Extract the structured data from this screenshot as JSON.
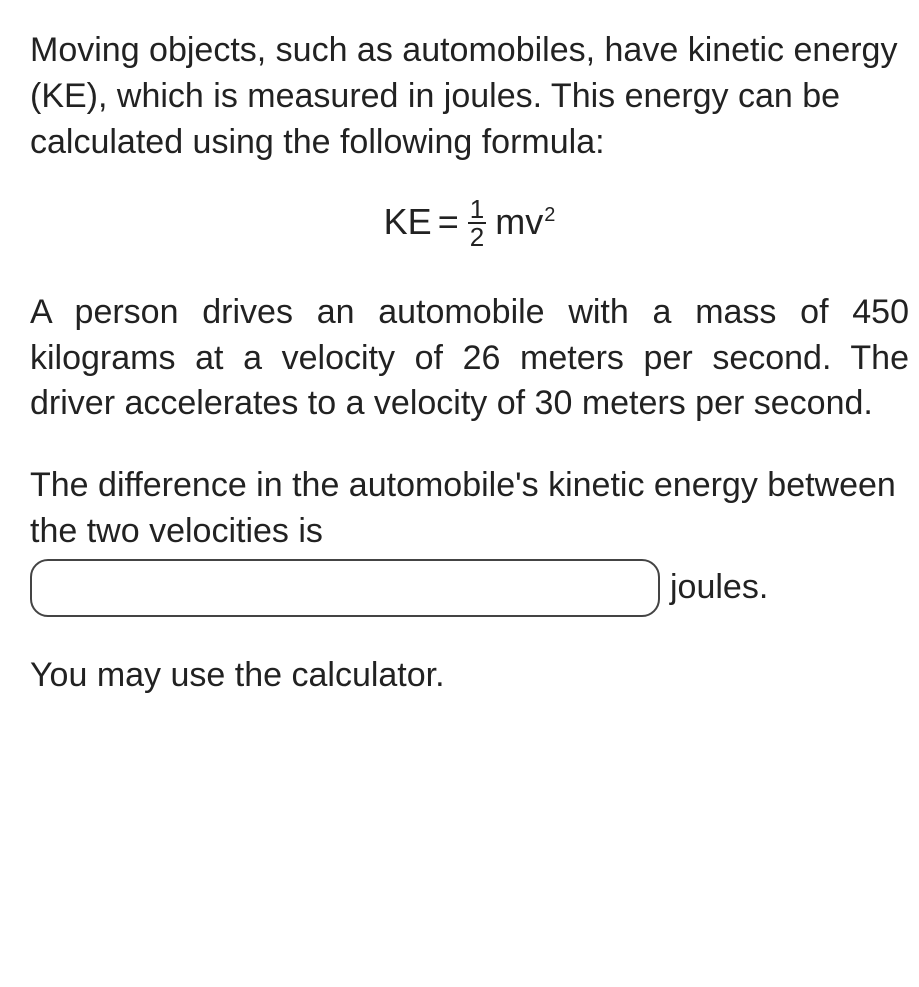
{
  "intro": "Moving objects, such as automobiles, have kinetic energy (KE), which is measured in joules. This energy can be calculated using the following formula:",
  "formula": {
    "lhs": "KE",
    "equals": "=",
    "numerator": "1",
    "denominator": "2",
    "mv": "mv",
    "exponent": "2"
  },
  "scenario": "A person drives an automobile with a mass of 450 kilograms at a velocity of 26 meters per second. The driver accelerates to a velocity of 30 meters per second.",
  "question_lead": "The difference in the automobile's kinetic energy between the two velocities is",
  "answer_value": "",
  "units_suffix": "joules.",
  "calculator_note": "You may use the calculator.",
  "colors": {
    "text": "#222222",
    "background": "#ffffff",
    "input_border": "#444444"
  },
  "font": {
    "family": "Verdana",
    "body_size_pt": 26,
    "formula_size_pt": 27
  }
}
